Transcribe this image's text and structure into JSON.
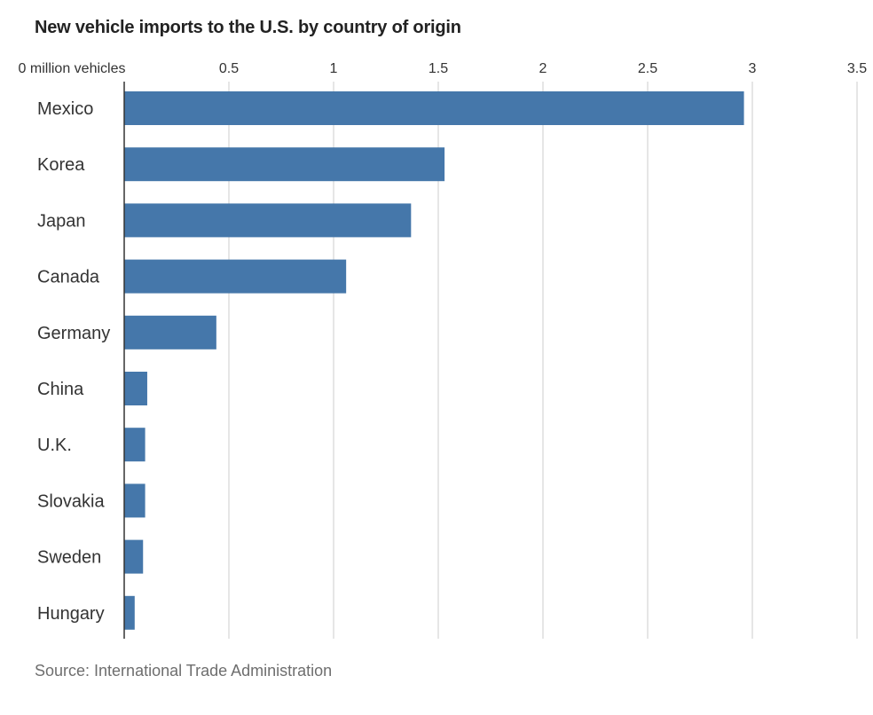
{
  "chart_data": {
    "type": "bar",
    "orientation": "horizontal",
    "title": "New vehicle imports to the U.S. by country of origin",
    "source": "Source: International Trade Administration",
    "xlabel": "million vehicles",
    "ylabel": "",
    "xlim": [
      0,
      3.5
    ],
    "ticks": [
      {
        "value": 0,
        "label": "0 million vehicles"
      },
      {
        "value": 0.5,
        "label": "0.5"
      },
      {
        "value": 1,
        "label": "1"
      },
      {
        "value": 1.5,
        "label": "1.5"
      },
      {
        "value": 2,
        "label": "2"
      },
      {
        "value": 2.5,
        "label": "2.5"
      },
      {
        "value": 3,
        "label": "3"
      },
      {
        "value": 3.5,
        "label": "3.5"
      }
    ],
    "grid": true,
    "bar_color": "#4577aa",
    "categories": [
      "Mexico",
      "Korea",
      "Japan",
      "Canada",
      "Germany",
      "China",
      "U.K.",
      "Slovakia",
      "Sweden",
      "Hungary"
    ],
    "values": [
      2.96,
      1.53,
      1.37,
      1.06,
      0.44,
      0.11,
      0.1,
      0.1,
      0.09,
      0.05
    ]
  }
}
